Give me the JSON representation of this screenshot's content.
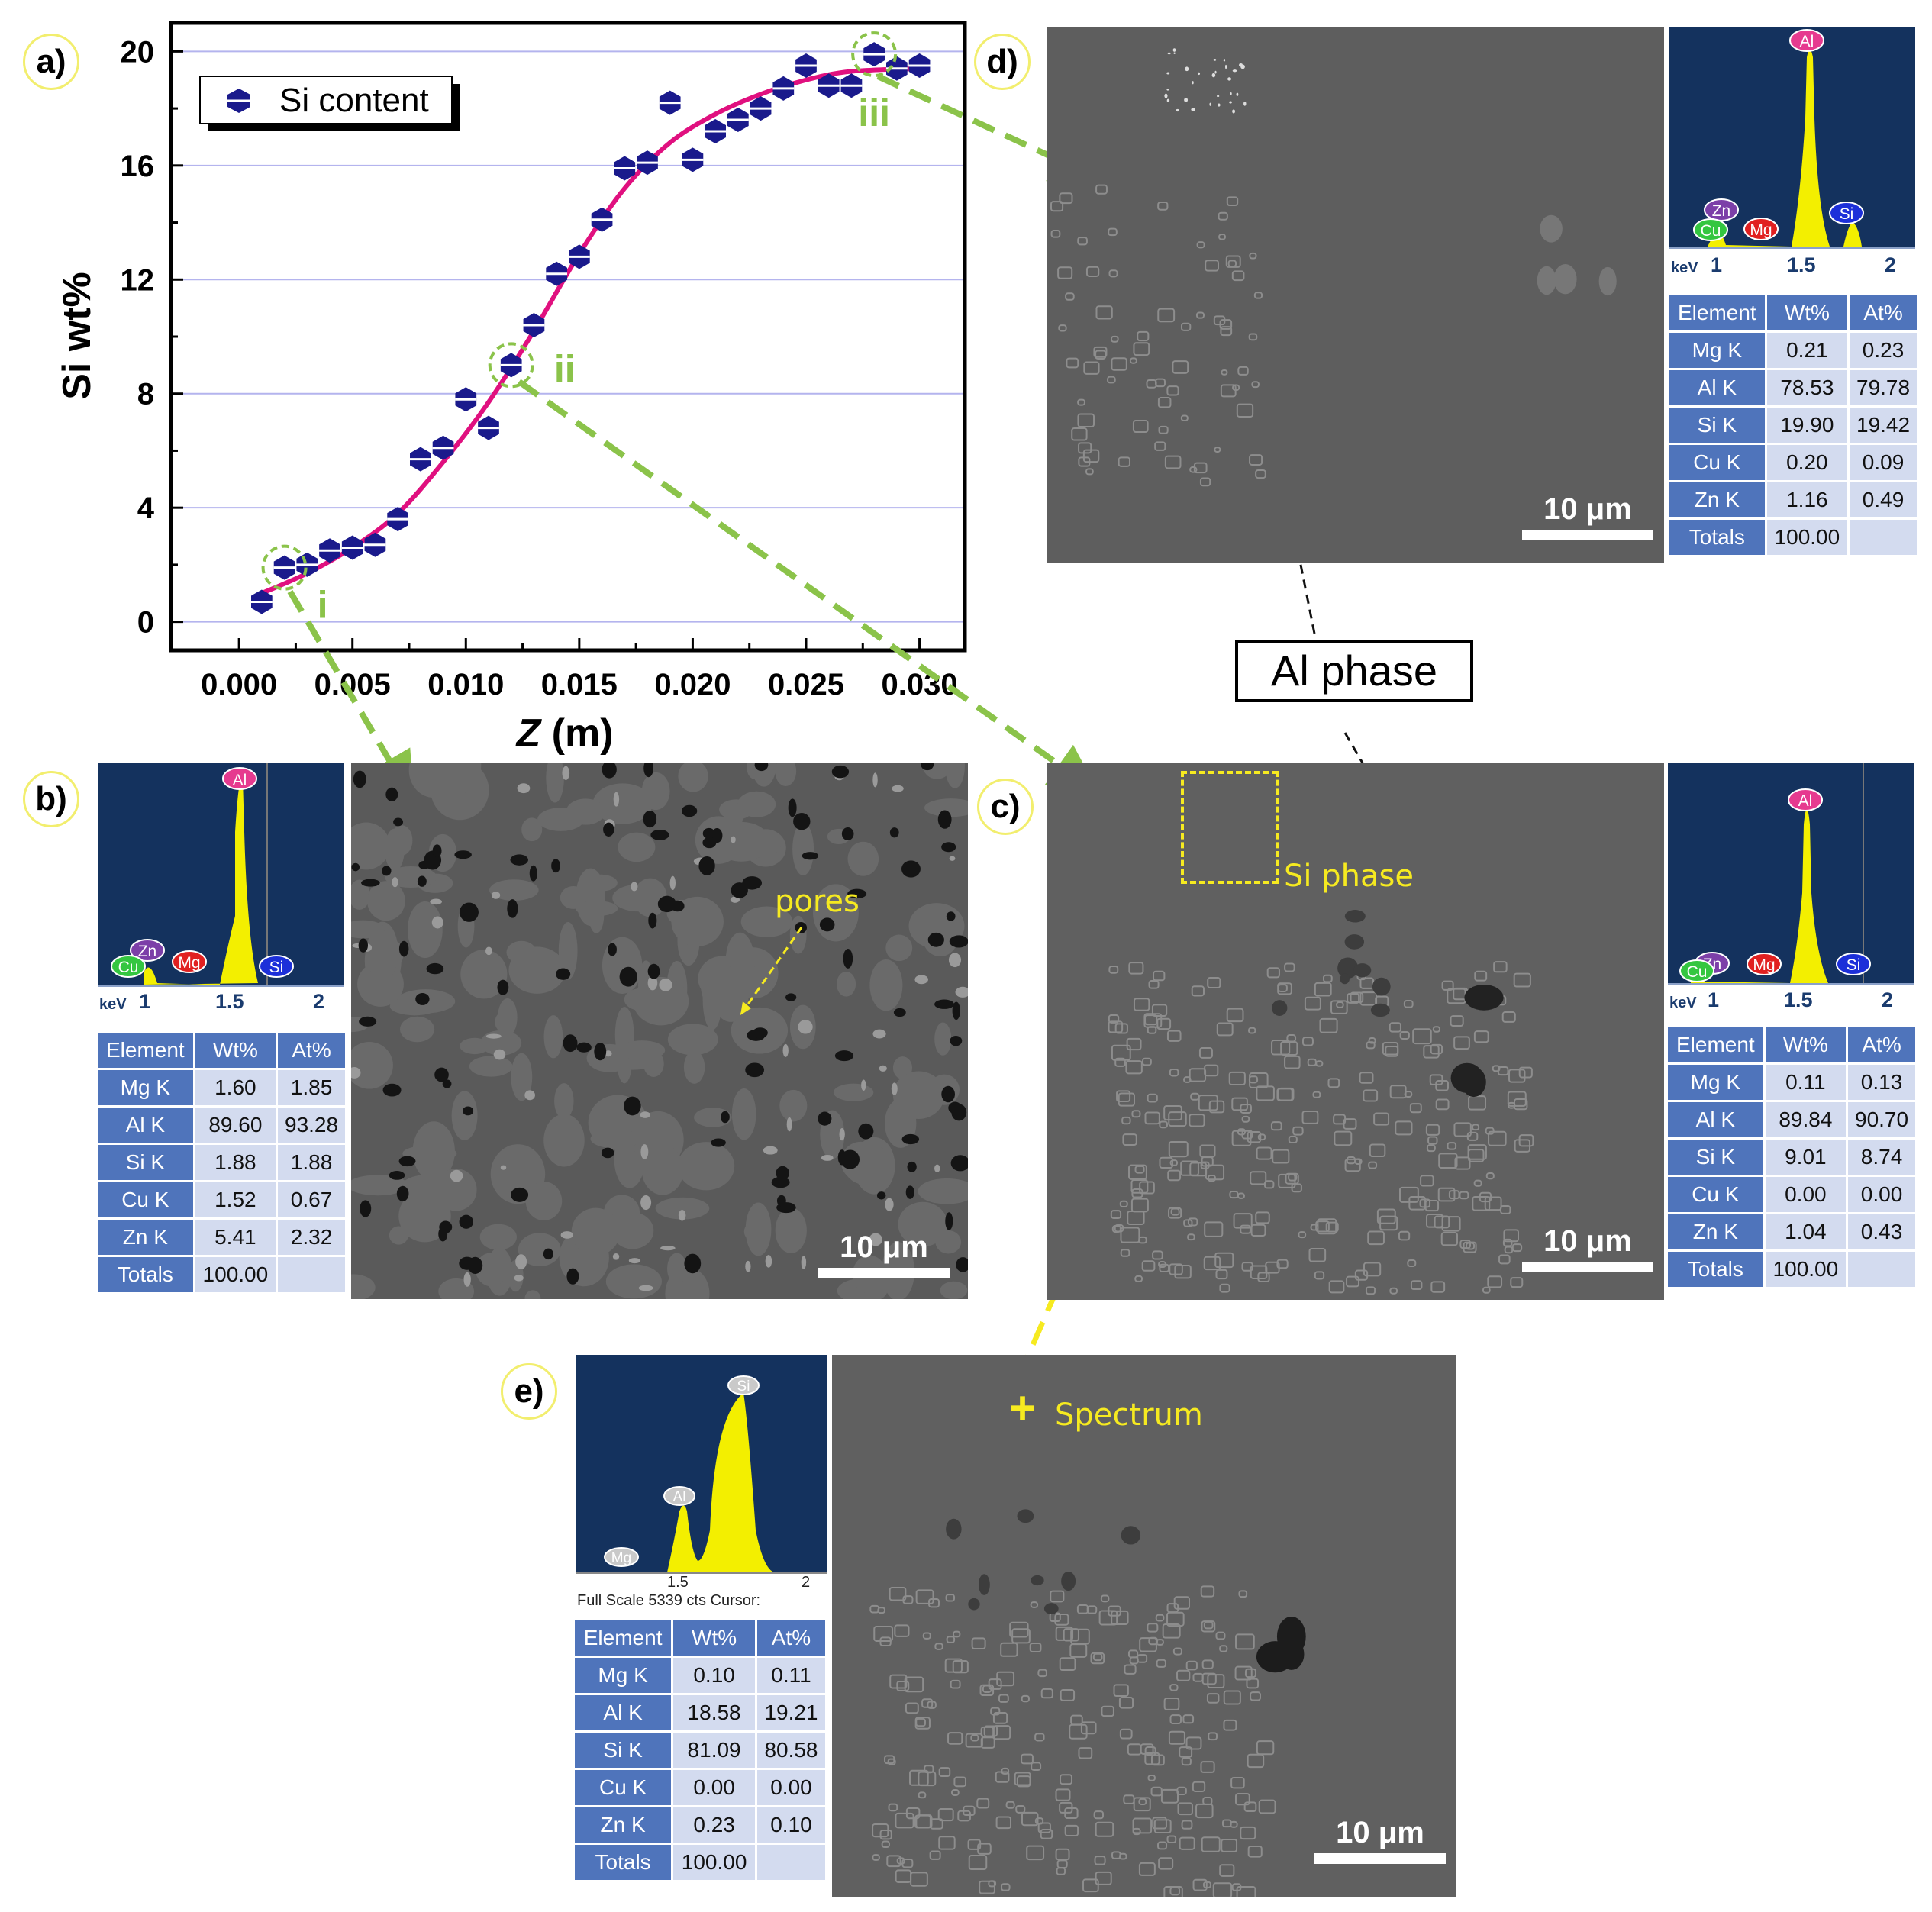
{
  "panels": {
    "a": "a)",
    "b": "b)",
    "c": "c)",
    "d": "d)",
    "e": "e)"
  },
  "chart_data": {
    "type": "scatter",
    "xlabel_italic": "Z",
    "xlabel_unit": " (m)",
    "ylabel": "Si wt%",
    "legend": "Si content",
    "legend_position": "top-left",
    "xlim": [
      -0.003,
      0.032
    ],
    "ylim": [
      -1,
      21
    ],
    "xticks": [
      "0.000",
      "0.005",
      "0.010",
      "0.015",
      "0.020",
      "0.025",
      "0.030"
    ],
    "xtick_values": [
      0.0,
      0.005,
      0.01,
      0.015,
      0.02,
      0.025,
      0.03
    ],
    "yticks": [
      "0",
      "4",
      "8",
      "12",
      "16",
      "20"
    ],
    "ytick_values": [
      0,
      4,
      8,
      12,
      16,
      20
    ],
    "grid": "horizontal",
    "points": [
      [
        0.001,
        0.7
      ],
      [
        0.002,
        1.9
      ],
      [
        0.003,
        2.0
      ],
      [
        0.004,
        2.5
      ],
      [
        0.005,
        2.6
      ],
      [
        0.006,
        2.7
      ],
      [
        0.007,
        3.6
      ],
      [
        0.008,
        5.7
      ],
      [
        0.009,
        6.1
      ],
      [
        0.01,
        7.8
      ],
      [
        0.011,
        6.8
      ],
      [
        0.012,
        9.0
      ],
      [
        0.013,
        10.4
      ],
      [
        0.014,
        12.2
      ],
      [
        0.015,
        12.8
      ],
      [
        0.016,
        14.1
      ],
      [
        0.017,
        15.9
      ],
      [
        0.018,
        16.1
      ],
      [
        0.019,
        18.2
      ],
      [
        0.02,
        16.2
      ],
      [
        0.021,
        17.2
      ],
      [
        0.022,
        17.6
      ],
      [
        0.023,
        18.0
      ],
      [
        0.024,
        18.7
      ],
      [
        0.025,
        19.5
      ],
      [
        0.026,
        18.8
      ],
      [
        0.027,
        18.8
      ],
      [
        0.028,
        19.9
      ],
      [
        0.029,
        19.4
      ],
      [
        0.03,
        19.5
      ]
    ],
    "fit": [
      [
        0.001,
        1.0
      ],
      [
        0.003,
        1.7
      ],
      [
        0.005,
        2.6
      ],
      [
        0.007,
        3.8
      ],
      [
        0.009,
        5.6
      ],
      [
        0.011,
        7.7
      ],
      [
        0.013,
        10.2
      ],
      [
        0.015,
        12.9
      ],
      [
        0.017,
        15.2
      ],
      [
        0.019,
        16.8
      ],
      [
        0.021,
        17.8
      ],
      [
        0.023,
        18.5
      ],
      [
        0.025,
        19.0
      ],
      [
        0.027,
        19.3
      ],
      [
        0.03,
        19.4
      ]
    ],
    "markers": [
      {
        "label": "i",
        "x": 0.002,
        "y": 1.9
      },
      {
        "label": "ii",
        "x": 0.012,
        "y": 9.0
      },
      {
        "label": "iii",
        "x": 0.028,
        "y": 19.9
      }
    ],
    "colors": {
      "marker": "#1a1a8c",
      "fit": "#e0107f",
      "grid": "#b4b4ee",
      "highlight": "#8bc34a"
    }
  },
  "annotations": {
    "al_phase": "Al phase",
    "pores": "pores",
    "si_phase": "Si phase",
    "spectrum": "Spectrum",
    "scale": "10 μm"
  },
  "spectra": {
    "b": {
      "peaks": [
        "Al",
        "Zn",
        "Cu",
        "Mg",
        "Si"
      ],
      "ticks": [
        "keV",
        "1",
        "1.5",
        "2"
      ]
    },
    "c": {
      "peaks": [
        "Al",
        "Zn",
        "Cu",
        "Mg",
        "Si"
      ],
      "ticks": [
        "keV",
        "1",
        "1.5",
        "2"
      ]
    },
    "d": {
      "peaks": [
        "Al",
        "Zn",
        "Cu",
        "Mg",
        "Si"
      ],
      "ticks": [
        "keV",
        "1",
        "1.5",
        "2"
      ]
    },
    "e": {
      "peaks": [
        "Si",
        "Al",
        "Mg"
      ],
      "ticks": [
        "1.5",
        "2"
      ],
      "caption": "Full Scale 5339 cts Cursor:"
    }
  },
  "tables": {
    "header": [
      "Element",
      "Wt%",
      "At%"
    ],
    "b": [
      [
        "Mg K",
        "1.60",
        "1.85"
      ],
      [
        "Al K",
        "89.60",
        "93.28"
      ],
      [
        "Si K",
        "1.88",
        "1.88"
      ],
      [
        "Cu K",
        "1.52",
        "0.67"
      ],
      [
        "Zn K",
        "5.41",
        "2.32"
      ],
      [
        "Totals",
        "100.00",
        ""
      ]
    ],
    "c": [
      [
        "Mg K",
        "0.11",
        "0.13"
      ],
      [
        "Al K",
        "89.84",
        "90.70"
      ],
      [
        "Si K",
        "9.01",
        "8.74"
      ],
      [
        "Cu K",
        "0.00",
        "0.00"
      ],
      [
        "Zn K",
        "1.04",
        "0.43"
      ],
      [
        "Totals",
        "100.00",
        ""
      ]
    ],
    "d": [
      [
        "Mg K",
        "0.21",
        "0.23"
      ],
      [
        "Al K",
        "78.53",
        "79.78"
      ],
      [
        "Si K",
        "19.90",
        "19.42"
      ],
      [
        "Cu K",
        "0.20",
        "0.09"
      ],
      [
        "Zn K",
        "1.16",
        "0.49"
      ],
      [
        "Totals",
        "100.00",
        ""
      ]
    ],
    "e": [
      [
        "Mg K",
        "0.10",
        "0.11"
      ],
      [
        "Al K",
        "18.58",
        "19.21"
      ],
      [
        "Si K",
        "81.09",
        "80.58"
      ],
      [
        "Cu K",
        "0.00",
        "0.00"
      ],
      [
        "Zn K",
        "0.23",
        "0.10"
      ],
      [
        "Totals",
        "100.00",
        ""
      ]
    ]
  }
}
